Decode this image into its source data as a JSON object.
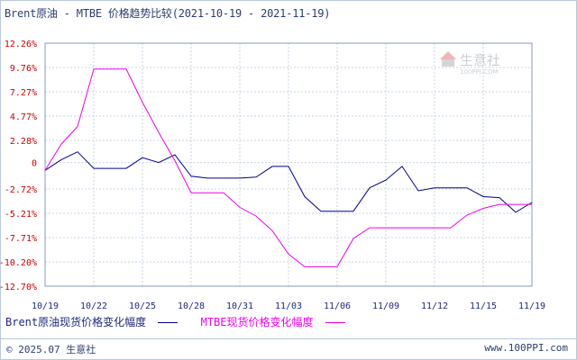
{
  "title": "Brent原油 - MTBE 价格趋势比较(2021-10-19 - 2021-11-19)",
  "watermark": {
    "text": "生意社",
    "url": "100PPI.COM"
  },
  "legend": {
    "brent_label": "Brent原油现货价格变化幅度",
    "mtbe_label": "MTBE现货价格变化幅度"
  },
  "footer": {
    "copyright": "© 2025.07 生意社",
    "url": "www.100PPI.com"
  },
  "colors": {
    "brent": "#00008b",
    "mtbe": "#ee00ee",
    "ytick": "#cc0000",
    "xtick": "#1f2a7a",
    "grid": "#c9d5e6"
  },
  "chart_data": {
    "type": "line",
    "x_tick_labels": [
      "10/19",
      "10/22",
      "10/25",
      "10/28",
      "10/31",
      "11/03",
      "11/06",
      "11/09",
      "11/12",
      "11/15",
      "11/19"
    ],
    "y_tick_labels": [
      "12.26%",
      "9.76%",
      "7.27%",
      "4.77%",
      "2.28%",
      "0",
      "-2.72%",
      "-5.21%",
      "-7.71%",
      "-10.20%",
      "-12.70%"
    ],
    "y_ticks": [
      12.26,
      9.76,
      7.27,
      4.77,
      2.28,
      0,
      -2.72,
      -5.21,
      -7.71,
      -10.2,
      -12.7
    ],
    "ylim": [
      -12.7,
      12.26
    ],
    "xlim": [
      0,
      30
    ],
    "grid": true,
    "series": [
      {
        "name": "Brent原油现货价格变化幅度",
        "x": [
          0,
          1,
          2,
          3,
          4,
          5,
          6,
          7,
          8,
          9,
          10,
          11,
          12,
          13,
          14,
          15,
          16,
          17,
          18,
          19,
          20,
          21,
          22,
          23,
          24,
          25,
          26,
          27,
          28,
          29,
          30
        ],
        "values": [
          -0.8,
          0.3,
          1.1,
          -0.6,
          -0.6,
          -0.6,
          0.5,
          0.0,
          0.8,
          -1.4,
          -1.6,
          -1.6,
          -1.6,
          -1.5,
          -0.4,
          -0.4,
          -3.5,
          -5.0,
          -5.0,
          -5.0,
          -2.6,
          -1.8,
          -0.4,
          -2.9,
          -2.6,
          -2.6,
          -2.6,
          -3.5,
          -3.6,
          -5.1,
          -4.1
        ]
      },
      {
        "name": "MTBE现货价格变化幅度",
        "x": [
          0,
          1,
          2,
          3,
          4,
          5,
          6,
          7,
          8,
          9,
          10,
          11,
          12,
          13,
          14,
          15,
          16,
          17,
          18,
          19,
          20,
          21,
          22,
          23,
          24,
          25,
          26,
          27,
          28,
          29,
          30
        ],
        "values": [
          -0.8,
          1.9,
          3.7,
          9.6,
          9.6,
          9.6,
          6.2,
          3.1,
          0.2,
          -3.1,
          -3.1,
          -3.1,
          -4.6,
          -5.5,
          -7.0,
          -9.4,
          -10.7,
          -10.7,
          -10.7,
          -7.8,
          -6.7,
          -6.7,
          -6.7,
          -6.7,
          -6.7,
          -6.7,
          -5.4,
          -4.7,
          -4.3,
          -4.3,
          -4.3
        ]
      }
    ]
  }
}
